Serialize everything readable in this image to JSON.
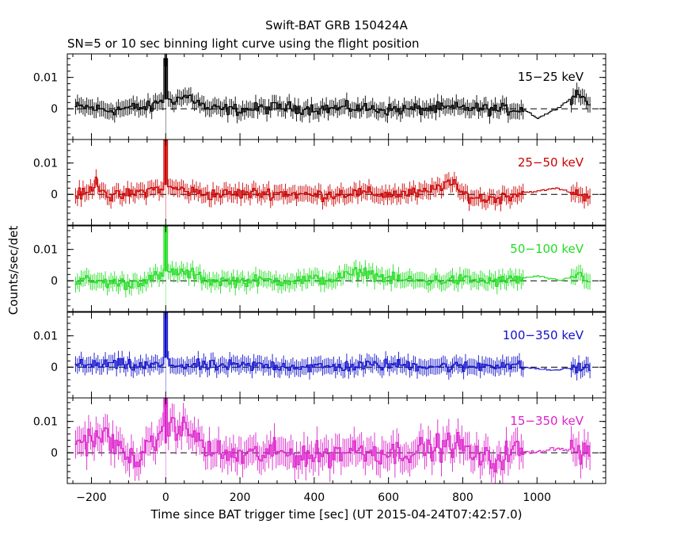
{
  "figure": {
    "title": "Swift-BAT GRB 150424A",
    "subtitle": "SN=5 or 10 sec binning light curve using the flight position",
    "xlabel": "Time since BAT trigger time [sec] (UT 2015-04-24T07:42:57.0)",
    "ylabel": "Counts/sec/det"
  },
  "chart_data": {
    "type": "line",
    "title": "Swift-BAT GRB 150424A",
    "subtitle": "SN=5 or 10 sec binning light curve using the flight position",
    "xlabel": "Time since BAT trigger time [sec] (UT 2015-04-24T07:42:57.0)",
    "ylabel": "Counts/sec/det",
    "xlim": [
      -265,
      1185
    ],
    "x_ticks": [
      -200,
      0,
      200,
      400,
      600,
      800,
      1000
    ],
    "x_tick_labels": [
      "−200",
      "0",
      "200",
      "400",
      "600",
      "800",
      "1000"
    ],
    "y_ticks": [
      0,
      0.01
    ],
    "y_tick_labels": [
      "0",
      "0.01"
    ],
    "zero_reference_line": "dashed",
    "trigger_marker_x": 0,
    "grid": false,
    "legend": "band label at top-right of each panel",
    "panels": [
      {
        "name": "15−25 keV",
        "color": "#000000",
        "ylim": [
          -0.0098,
          0.0175
        ],
        "segments": [
          [
            -215,
            0.0005
          ],
          [
            -160,
            -0.0005
          ],
          [
            -100,
            0.0003
          ],
          [
            -40,
            0.0005
          ],
          [
            -15,
            0.003
          ],
          [
            20,
            0.003
          ],
          [
            60,
            0.004
          ],
          [
            110,
            0.0
          ],
          [
            200,
            -0.0003
          ],
          [
            300,
            0.0005
          ],
          [
            400,
            0.0
          ],
          [
            500,
            0.0003
          ],
          [
            600,
            -0.0003
          ],
          [
            700,
            0.0
          ],
          [
            800,
            0.0003
          ],
          [
            900,
            -0.0003
          ],
          [
            960,
            0.0
          ],
          [
            1000,
            -0.003
          ],
          [
            1050,
            0.0
          ],
          [
            1110,
            0.005
          ],
          [
            1150,
            0.0
          ]
        ],
        "peak": {
          "x": 0,
          "y": 0.016
        }
      },
      {
        "name": "25−50 keV",
        "color": "#cc0000",
        "ylim": [
          -0.0098,
          0.0175
        ],
        "segments": [
          [
            -215,
            0.0
          ],
          [
            -190,
            0.004
          ],
          [
            -150,
            -0.001
          ],
          [
            -80,
            0.0005
          ],
          [
            -20,
            0.002
          ],
          [
            20,
            0.002
          ],
          [
            60,
            0.001
          ],
          [
            120,
            0.0
          ],
          [
            300,
            0.0005
          ],
          [
            400,
            -0.0003
          ],
          [
            500,
            0.0005
          ],
          [
            600,
            0.0
          ],
          [
            700,
            0.0005
          ],
          [
            760,
            0.004
          ],
          [
            800,
            0.0
          ],
          [
            850,
            -0.0015
          ],
          [
            900,
            -0.001
          ],
          [
            950,
            0.0005
          ],
          [
            1000,
            0.001
          ],
          [
            1050,
            0.002
          ],
          [
            1110,
            0.0
          ],
          [
            1150,
            -0.0005
          ]
        ],
        "peak": {
          "x": 0,
          "y": 0.0195
        }
      },
      {
        "name": "50−100 keV",
        "color": "#22dd22",
        "ylim": [
          -0.0098,
          0.0175
        ],
        "segments": [
          [
            -215,
            0.0
          ],
          [
            -100,
            -0.001
          ],
          [
            -20,
            0.0015
          ],
          [
            20,
            0.003
          ],
          [
            70,
            0.002
          ],
          [
            120,
            0.0
          ],
          [
            300,
            0.0
          ],
          [
            450,
            0.0005
          ],
          [
            530,
            0.003
          ],
          [
            600,
            0.0005
          ],
          [
            700,
            0.0
          ],
          [
            800,
            0.0003
          ],
          [
            900,
            -0.0002
          ],
          [
            1000,
            0.0015
          ],
          [
            1060,
            0.0
          ],
          [
            1110,
            0.002
          ],
          [
            1150,
            0.0
          ]
        ],
        "peak": {
          "x": 0,
          "y": 0.0195
        }
      },
      {
        "name": "100−350 keV",
        "color": "#1111cc",
        "ylim": [
          -0.0098,
          0.0175
        ],
        "segments": [
          [
            -215,
            0.0005
          ],
          [
            -150,
            0.001
          ],
          [
            -80,
            0.0003
          ],
          [
            20,
            0.0008
          ],
          [
            100,
            0.0003
          ],
          [
            300,
            0.0005
          ],
          [
            400,
            0.0
          ],
          [
            500,
            0.0003
          ],
          [
            600,
            0.0008
          ],
          [
            700,
            0.0005
          ],
          [
            800,
            0.0
          ],
          [
            900,
            0.001
          ],
          [
            960,
            0.0
          ],
          [
            1040,
            -0.001
          ],
          [
            1110,
            0.0
          ],
          [
            1150,
            -0.0008
          ]
        ],
        "peak": {
          "x": 0,
          "y": 0.02
        }
      },
      {
        "name": "15−350 keV",
        "color": "#dd22cc",
        "ylim": [
          -0.0098,
          0.0175
        ],
        "segments": [
          [
            -215,
            0.004
          ],
          [
            -170,
            0.006
          ],
          [
            -100,
            -0.002
          ],
          [
            -40,
            0.001
          ],
          [
            -15,
            0.008
          ],
          [
            20,
            0.009
          ],
          [
            70,
            0.006
          ],
          [
            120,
            0.0
          ],
          [
            200,
            -0.001
          ],
          [
            300,
            0.0
          ],
          [
            400,
            -0.001
          ],
          [
            500,
            0.001
          ],
          [
            600,
            0.0
          ],
          [
            700,
            0.001
          ],
          [
            780,
            0.003
          ],
          [
            830,
            -0.001
          ],
          [
            880,
            -0.003
          ],
          [
            930,
            0.001
          ],
          [
            980,
            0.0
          ],
          [
            1050,
            0.0015
          ],
          [
            1110,
            0.0005
          ],
          [
            1150,
            0.0
          ]
        ],
        "peak": {
          "x": 0,
          "y": 0.019
        }
      }
    ]
  }
}
